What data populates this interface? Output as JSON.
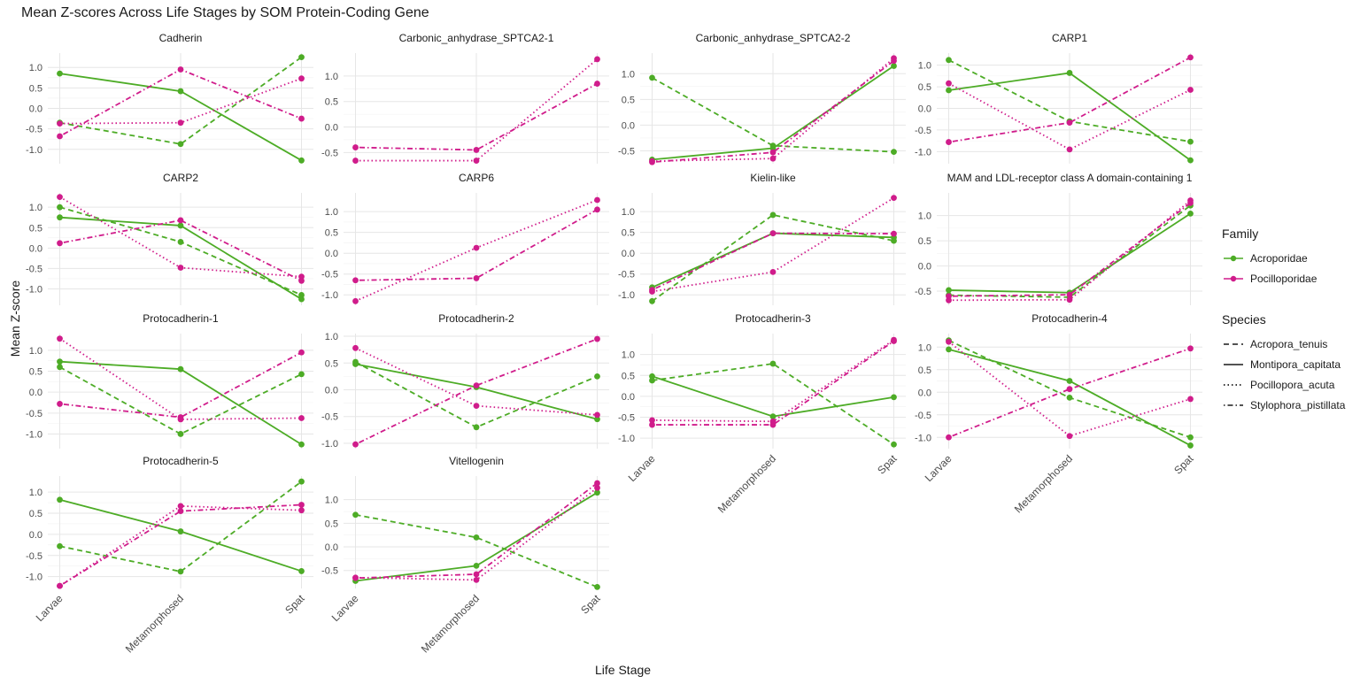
{
  "title": "Mean Z-scores Across Life Stages by SOM Protein-Coding Gene",
  "chart_data": {
    "type": "line",
    "title": "Mean Z-scores Across Life Stages by SOM Protein-Coding Gene",
    "xlabel": "Life Stage",
    "ylabel": "Mean Z-score",
    "categories": [
      "Larvae",
      "Metamorphosed",
      "Spat"
    ],
    "legend": {
      "family_title": "Family",
      "families": [
        {
          "name": "Acroporidae",
          "color": "#4DAC26"
        },
        {
          "name": "Pocilloporidae",
          "color": "#D01C8B"
        }
      ],
      "species_title": "Species",
      "species": [
        {
          "name": "Acropora_tenuis",
          "linetype": "dashed"
        },
        {
          "name": "Montipora_capitata",
          "linetype": "solid"
        },
        {
          "name": "Pocillopora_acuta",
          "linetype": "dotted"
        },
        {
          "name": "Stylophora_pistillata",
          "linetype": "dotdash"
        }
      ],
      "position": "right"
    },
    "panels": [
      {
        "name": "Cadherin",
        "ylim": [
          -1.35,
          1.35
        ],
        "yticks": [
          1.0,
          0.5,
          0.0,
          -0.5,
          -1.0
        ],
        "series": [
          {
            "species": "Acropora_tenuis",
            "family": "Acroporidae",
            "values": [
              -0.35,
              -0.87,
              1.25
            ]
          },
          {
            "species": "Montipora_capitata",
            "family": "Acroporidae",
            "values": [
              0.85,
              0.42,
              -1.27
            ]
          },
          {
            "species": "Pocillopora_acuta",
            "family": "Pocilloporidae",
            "values": [
              -0.37,
              -0.35,
              0.73
            ]
          },
          {
            "species": "Stylophora_pistillata",
            "family": "Pocilloporidae",
            "values": [
              -0.68,
              0.95,
              -0.25
            ]
          }
        ]
      },
      {
        "name": "Carbonic_anhydrase_SPTCA2-1",
        "ylim": [
          -0.72,
          1.45
        ],
        "yticks": [
          1.0,
          0.5,
          0.0,
          -0.5
        ],
        "series": [
          {
            "species": "Pocillopora_acuta",
            "family": "Pocilloporidae",
            "values": [
              -0.66,
              -0.66,
              1.33
            ]
          },
          {
            "species": "Stylophora_pistillata",
            "family": "Pocilloporidae",
            "values": [
              -0.4,
              -0.45,
              0.85
            ]
          }
        ]
      },
      {
        "name": "Carbonic_anhydrase_SPTCA2-2",
        "ylim": [
          -0.75,
          1.4
        ],
        "yticks": [
          1.0,
          0.5,
          0.0,
          -0.5
        ],
        "series": [
          {
            "species": "Acropora_tenuis",
            "family": "Acroporidae",
            "values": [
              0.92,
              -0.4,
              -0.52
            ]
          },
          {
            "species": "Montipora_capitata",
            "family": "Acroporidae",
            "values": [
              -0.67,
              -0.45,
              1.15
            ]
          },
          {
            "species": "Pocillopora_acuta",
            "family": "Pocilloporidae",
            "values": [
              -0.7,
              -0.65,
              1.3
            ]
          },
          {
            "species": "Stylophora_pistillata",
            "family": "Pocilloporidae",
            "values": [
              -0.72,
              -0.53,
              1.25
            ]
          }
        ]
      },
      {
        "name": "CARP1",
        "ylim": [
          -1.28,
          1.28
        ],
        "yticks": [
          1.0,
          0.5,
          0.0,
          -0.5,
          -1.0
        ],
        "series": [
          {
            "species": "Acropora_tenuis",
            "family": "Acroporidae",
            "values": [
              1.12,
              -0.3,
              -0.77
            ]
          },
          {
            "species": "Montipora_capitata",
            "family": "Acroporidae",
            "values": [
              0.42,
              0.82,
              -1.2
            ]
          },
          {
            "species": "Pocillopora_acuta",
            "family": "Pocilloporidae",
            "values": [
              0.58,
              -0.95,
              0.43
            ]
          },
          {
            "species": "Stylophora_pistillata",
            "family": "Pocilloporidae",
            "values": [
              -0.78,
              -0.33,
              1.18
            ]
          }
        ]
      },
      {
        "name": "CARP2",
        "ylim": [
          -1.4,
          1.35
        ],
        "yticks": [
          1.0,
          0.5,
          0.0,
          -0.5,
          -1.0
        ],
        "series": [
          {
            "species": "Acropora_tenuis",
            "family": "Acroporidae",
            "values": [
              1.0,
              0.15,
              -1.15
            ]
          },
          {
            "species": "Montipora_capitata",
            "family": "Acroporidae",
            "values": [
              0.75,
              0.55,
              -1.25
            ]
          },
          {
            "species": "Pocillopora_acuta",
            "family": "Pocilloporidae",
            "values": [
              1.25,
              -0.48,
              -0.7
            ]
          },
          {
            "species": "Stylophora_pistillata",
            "family": "Pocilloporidae",
            "values": [
              0.12,
              0.68,
              -0.8
            ]
          }
        ]
      },
      {
        "name": "CARP6",
        "ylim": [
          -1.25,
          1.45
        ],
        "yticks": [
          1.0,
          0.5,
          0.0,
          -0.5,
          -1.0
        ],
        "series": [
          {
            "species": "Pocillopora_acuta",
            "family": "Pocilloporidae",
            "values": [
              -1.15,
              0.13,
              1.28
            ]
          },
          {
            "species": "Stylophora_pistillata",
            "family": "Pocilloporidae",
            "values": [
              -0.65,
              -0.6,
              1.05
            ]
          }
        ]
      },
      {
        "name": "Kielin-like",
        "ylim": [
          -1.25,
          1.45
        ],
        "yticks": [
          1.0,
          0.5,
          0.0,
          -0.5,
          -1.0
        ],
        "series": [
          {
            "species": "Acropora_tenuis",
            "family": "Acroporidae",
            "values": [
              -1.15,
              0.92,
              0.3
            ]
          },
          {
            "species": "Montipora_capitata",
            "family": "Acroporidae",
            "values": [
              -0.82,
              0.48,
              0.38
            ]
          },
          {
            "species": "Pocillopora_acuta",
            "family": "Pocilloporidae",
            "values": [
              -0.92,
              -0.45,
              1.33
            ]
          },
          {
            "species": "Stylophora_pistillata",
            "family": "Pocilloporidae",
            "values": [
              -0.88,
              0.48,
              0.47
            ]
          }
        ]
      },
      {
        "name": "MAM and LDL-receptor class A domain-containing 1",
        "ylim": [
          -0.78,
          1.45
        ],
        "yticks": [
          1.0,
          0.5,
          0.0,
          -0.5
        ],
        "series": [
          {
            "species": "Acropora_tenuis",
            "family": "Acroporidae",
            "values": [
              -0.58,
              -0.62,
              1.2
            ]
          },
          {
            "species": "Montipora_capitata",
            "family": "Acroporidae",
            "values": [
              -0.48,
              -0.53,
              1.04
            ]
          },
          {
            "species": "Pocillopora_acuta",
            "family": "Pocilloporidae",
            "values": [
              -0.68,
              -0.67,
              1.3
            ]
          },
          {
            "species": "Stylophora_pistillata",
            "family": "Pocilloporidae",
            "values": [
              -0.6,
              -0.57,
              1.25
            ]
          }
        ]
      },
      {
        "name": "Protocadherin-1",
        "ylim": [
          -1.35,
          1.4
        ],
        "yticks": [
          1.0,
          0.5,
          0.0,
          -0.5,
          -1.0
        ],
        "series": [
          {
            "species": "Acropora_tenuis",
            "family": "Acroporidae",
            "values": [
              0.6,
              -1.0,
              0.43
            ]
          },
          {
            "species": "Montipora_capitata",
            "family": "Acroporidae",
            "values": [
              0.73,
              0.55,
              -1.25
            ]
          },
          {
            "species": "Pocillopora_acuta",
            "family": "Pocilloporidae",
            "values": [
              1.28,
              -0.65,
              -0.62
            ]
          },
          {
            "species": "Stylophora_pistillata",
            "family": "Pocilloporidae",
            "values": [
              -0.28,
              -0.6,
              0.95
            ]
          }
        ]
      },
      {
        "name": "Protocadherin-2",
        "ylim": [
          -1.1,
          1.05
        ],
        "yticks": [
          1.0,
          0.5,
          0.0,
          -0.5,
          -1.0
        ],
        "series": [
          {
            "species": "Acropora_tenuis",
            "family": "Acroporidae",
            "values": [
              0.52,
              -0.7,
              0.25
            ]
          },
          {
            "species": "Montipora_capitata",
            "family": "Acroporidae",
            "values": [
              0.48,
              0.05,
              -0.55
            ]
          },
          {
            "species": "Pocillopora_acuta",
            "family": "Pocilloporidae",
            "values": [
              0.78,
              -0.3,
              -0.47
            ]
          },
          {
            "species": "Stylophora_pistillata",
            "family": "Pocilloporidae",
            "values": [
              -1.02,
              0.08,
              0.95
            ]
          }
        ]
      },
      {
        "name": "Protocadherin-3",
        "ylim": [
          -1.25,
          1.5
        ],
        "yticks": [
          1.0,
          0.5,
          0.0,
          -0.5,
          -1.0
        ],
        "series": [
          {
            "species": "Acropora_tenuis",
            "family": "Acroporidae",
            "values": [
              0.38,
              0.78,
              -1.15
            ]
          },
          {
            "species": "Montipora_capitata",
            "family": "Acroporidae",
            "values": [
              0.48,
              -0.48,
              -0.02
            ]
          },
          {
            "species": "Pocillopora_acuta",
            "family": "Pocilloporidae",
            "values": [
              -0.57,
              -0.6,
              1.35
            ]
          },
          {
            "species": "Stylophora_pistillata",
            "family": "Pocilloporidae",
            "values": [
              -0.68,
              -0.68,
              1.32
            ]
          }
        ]
      },
      {
        "name": "Protocadherin-4",
        "ylim": [
          -1.25,
          1.3
        ],
        "yticks": [
          1.0,
          0.5,
          0.0,
          -0.5,
          -1.0
        ],
        "series": [
          {
            "species": "Acropora_tenuis",
            "family": "Acroporidae",
            "values": [
              1.15,
              -0.12,
              -1.0
            ]
          },
          {
            "species": "Montipora_capitata",
            "family": "Acroporidae",
            "values": [
              0.95,
              0.25,
              -1.18
            ]
          },
          {
            "species": "Pocillopora_acuta",
            "family": "Pocilloporidae",
            "values": [
              1.12,
              -0.97,
              -0.15
            ]
          },
          {
            "species": "Stylophora_pistillata",
            "family": "Pocilloporidae",
            "values": [
              -1.0,
              0.07,
              0.97
            ]
          }
        ]
      },
      {
        "name": "Protocadherin-5",
        "ylim": [
          -1.28,
          1.38
        ],
        "yticks": [
          1.0,
          0.5,
          0.0,
          -0.5,
          -1.0
        ],
        "series": [
          {
            "species": "Acropora_tenuis",
            "family": "Acroporidae",
            "values": [
              -0.28,
              -0.88,
              1.25
            ]
          },
          {
            "species": "Montipora_capitata",
            "family": "Acroporidae",
            "values": [
              0.82,
              0.07,
              -0.87
            ]
          },
          {
            "species": "Pocillopora_acuta",
            "family": "Pocilloporidae",
            "values": [
              -1.22,
              0.67,
              0.57
            ]
          },
          {
            "species": "Stylophora_pistillata",
            "family": "Pocilloporidae",
            "values": [
              -1.22,
              0.55,
              0.7
            ]
          }
        ]
      },
      {
        "name": "Vitellogenin",
        "ylim": [
          -0.88,
          1.5
        ],
        "yticks": [
          1.0,
          0.5,
          0.0,
          -0.5
        ],
        "series": [
          {
            "species": "Acropora_tenuis",
            "family": "Acroporidae",
            "values": [
              0.68,
              0.2,
              -0.85
            ]
          },
          {
            "species": "Montipora_capitata",
            "family": "Acroporidae",
            "values": [
              -0.72,
              -0.4,
              1.15
            ]
          },
          {
            "species": "Pocillopora_acuta",
            "family": "Pocilloporidae",
            "values": [
              -0.65,
              -0.7,
              1.25
            ]
          },
          {
            "species": "Stylophora_pistillata",
            "family": "Pocilloporidae",
            "values": [
              -0.66,
              -0.58,
              1.35
            ]
          }
        ]
      }
    ]
  }
}
